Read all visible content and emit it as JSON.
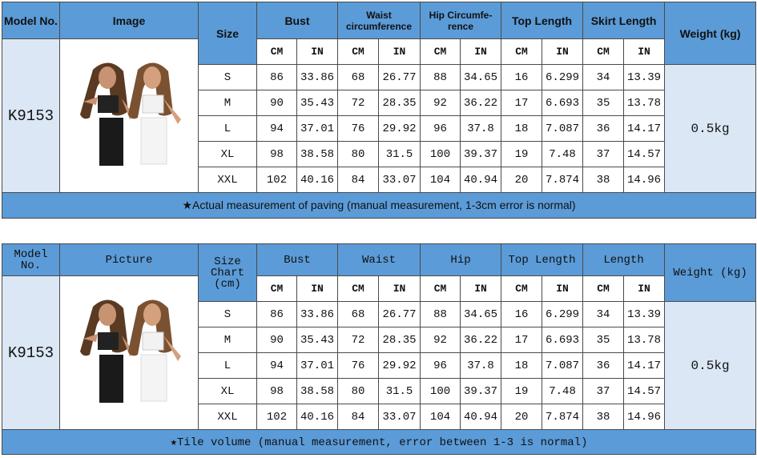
{
  "tables": [
    {
      "header": [
        "Model No.",
        "Image",
        "Size",
        "Bust",
        "Waist circumference",
        "Hip Circumfe-rence",
        "Top Length",
        "Skirt Length",
        "Weight (kg)"
      ],
      "units": [
        "CM",
        "IN",
        "CM",
        "IN",
        "CM",
        "IN",
        "CM",
        "IN",
        "CM",
        "IN"
      ],
      "model": "K9153",
      "weight": "0.5kg",
      "rows": [
        [
          "S",
          86,
          33.86,
          68,
          26.77,
          88,
          34.65,
          16,
          6.299,
          34,
          13.39
        ],
        [
          "M",
          90,
          35.43,
          72,
          28.35,
          92,
          36.22,
          17,
          6.693,
          35,
          13.78
        ],
        [
          "L",
          94,
          37.01,
          76,
          29.92,
          96,
          37.8,
          18,
          7.087,
          36,
          14.17
        ],
        [
          "XL",
          98,
          38.58,
          80,
          31.5,
          100,
          39.37,
          19,
          7.48,
          37,
          14.57
        ],
        [
          "XXL",
          102,
          40.16,
          84,
          33.07,
          104,
          40.94,
          20,
          7.874,
          38,
          14.96
        ]
      ],
      "note": "★Actual measurement of paving (manual measurement, 1-3cm error is normal)"
    },
    {
      "header": [
        "Model No.",
        "Picture",
        "Size Chart (cm)",
        "Bust",
        "Waist",
        "Hip",
        "Top Length",
        "Length",
        "Weight (kg)"
      ],
      "units": [
        "CM",
        "IN",
        "CM",
        "IN",
        "CM",
        "IN",
        "CM",
        "IN",
        "CM",
        "IN"
      ],
      "model": "K9153",
      "weight": "0.5kg",
      "rows": [
        [
          "S",
          86,
          33.86,
          68,
          26.77,
          88,
          34.65,
          16,
          6.299,
          34,
          13.39
        ],
        [
          "M",
          90,
          35.43,
          72,
          28.35,
          92,
          36.22,
          17,
          6.693,
          35,
          13.78
        ],
        [
          "L",
          94,
          37.01,
          76,
          29.92,
          96,
          37.8,
          18,
          7.087,
          36,
          14.17
        ],
        [
          "XL",
          98,
          38.58,
          80,
          31.5,
          100,
          39.37,
          19,
          7.48,
          37,
          14.57
        ],
        [
          "XXL",
          102,
          40.16,
          84,
          33.07,
          104,
          40.94,
          20,
          7.874,
          38,
          14.96
        ]
      ],
      "note": "★Tile volume (manual measurement, error between 1-3 is normal)"
    }
  ]
}
